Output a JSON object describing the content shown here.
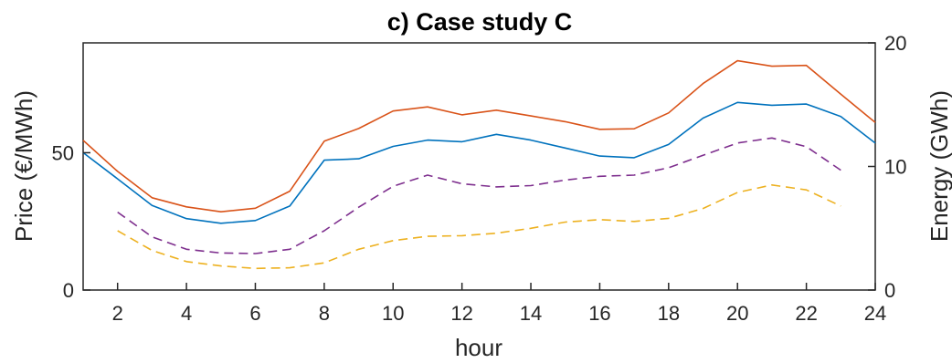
{
  "chart_data": {
    "type": "line",
    "title": "c) Case study C",
    "xlabel": "hour",
    "ylabel_left": "Price (€/MWh)",
    "ylabel_right": "Energy (GWh)",
    "xlim": [
      1,
      24
    ],
    "x_ticks": [
      2,
      4,
      6,
      8,
      10,
      12,
      14,
      16,
      18,
      20,
      22,
      24
    ],
    "ylim_left": [
      0,
      90
    ],
    "y_ticks_left": [
      0,
      50
    ],
    "ylim_right": [
      0,
      20
    ],
    "y_ticks_right": [
      0,
      10,
      20
    ],
    "grid": false,
    "series": [
      {
        "axis": "left",
        "color": "#d95319",
        "style": "solid",
        "x": [
          1,
          2,
          3,
          4,
          5,
          6,
          7,
          8,
          9,
          10,
          11,
          12,
          13,
          14,
          15,
          16,
          17,
          18,
          19,
          20,
          21,
          22,
          23,
          24
        ],
        "values": [
          54.5,
          43.2,
          33.6,
          30.3,
          28.5,
          29.8,
          36.0,
          54.2,
          58.8,
          65.2,
          66.7,
          63.8,
          65.5,
          63.4,
          61.3,
          58.5,
          58.7,
          64.5,
          75.2,
          83.5,
          81.5,
          81.8,
          71.3,
          61.0
        ]
      },
      {
        "axis": "left",
        "color": "#0072bd",
        "style": "solid",
        "x": [
          1,
          2,
          3,
          4,
          5,
          6,
          7,
          8,
          9,
          10,
          11,
          12,
          13,
          14,
          15,
          16,
          17,
          18,
          19,
          20,
          21,
          22,
          23,
          24
        ],
        "values": [
          50.0,
          40.5,
          30.8,
          26.0,
          24.3,
          25.3,
          30.6,
          47.3,
          47.8,
          52.3,
          54.6,
          54.0,
          56.7,
          54.6,
          51.7,
          48.8,
          48.2,
          53.0,
          62.6,
          68.3,
          67.3,
          67.7,
          63.2,
          53.5
        ]
      },
      {
        "axis": "right",
        "color": "#7e2f8e",
        "style": "dashed",
        "x": [
          2,
          3,
          4,
          5,
          6,
          7,
          8,
          9,
          10,
          11,
          12,
          13,
          14,
          15,
          16,
          17,
          18,
          19,
          20,
          21,
          22,
          23
        ],
        "values": [
          6.3,
          4.3,
          3.3,
          3.0,
          2.95,
          3.3,
          4.8,
          6.7,
          8.4,
          9.3,
          8.6,
          8.35,
          8.45,
          8.9,
          9.2,
          9.3,
          9.9,
          10.9,
          11.9,
          12.3,
          11.6,
          9.7
        ]
      },
      {
        "axis": "right",
        "color": "#edb120",
        "style": "dashed",
        "x": [
          2,
          3,
          4,
          5,
          6,
          7,
          8,
          9,
          10,
          11,
          12,
          13,
          14,
          15,
          16,
          17,
          18,
          19,
          20,
          21,
          22,
          23
        ],
        "values": [
          4.8,
          3.2,
          2.3,
          1.95,
          1.75,
          1.8,
          2.2,
          3.3,
          4.0,
          4.35,
          4.4,
          4.6,
          5.0,
          5.5,
          5.7,
          5.55,
          5.8,
          6.6,
          7.9,
          8.5,
          8.1,
          6.8
        ]
      }
    ]
  }
}
